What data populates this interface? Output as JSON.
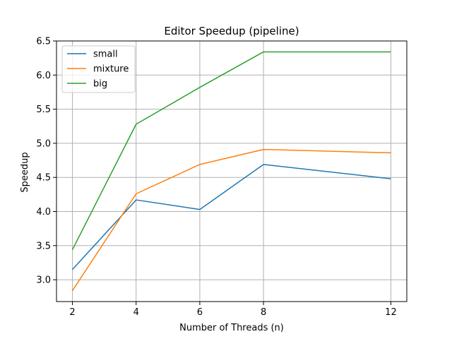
{
  "chart_data": {
    "type": "line",
    "title": "Editor Speedup (pipeline)",
    "xlabel": "Number of Threads (n)",
    "ylabel": "Speedup",
    "x": [
      2,
      4,
      6,
      8,
      12
    ],
    "xticks": [
      "2",
      "4",
      "6",
      "8",
      "12"
    ],
    "yticks": [
      "3.0",
      "3.5",
      "4.0",
      "4.5",
      "5.0",
      "5.5",
      "6.0",
      "6.5"
    ],
    "xlim": [
      1.5,
      12.5
    ],
    "ylim": [
      2.68,
      6.5
    ],
    "grid": true,
    "legend_position": "top-left",
    "series": [
      {
        "name": "small",
        "color": "#1f77b4",
        "values": [
          3.15,
          4.17,
          4.03,
          4.69,
          4.48
        ]
      },
      {
        "name": "mixture",
        "color": "#ff7f0e",
        "values": [
          2.84,
          4.26,
          4.69,
          4.91,
          4.86
        ]
      },
      {
        "name": "big",
        "color": "#2ca02c",
        "values": [
          3.44,
          5.28,
          5.82,
          6.34,
          6.34
        ]
      }
    ]
  }
}
